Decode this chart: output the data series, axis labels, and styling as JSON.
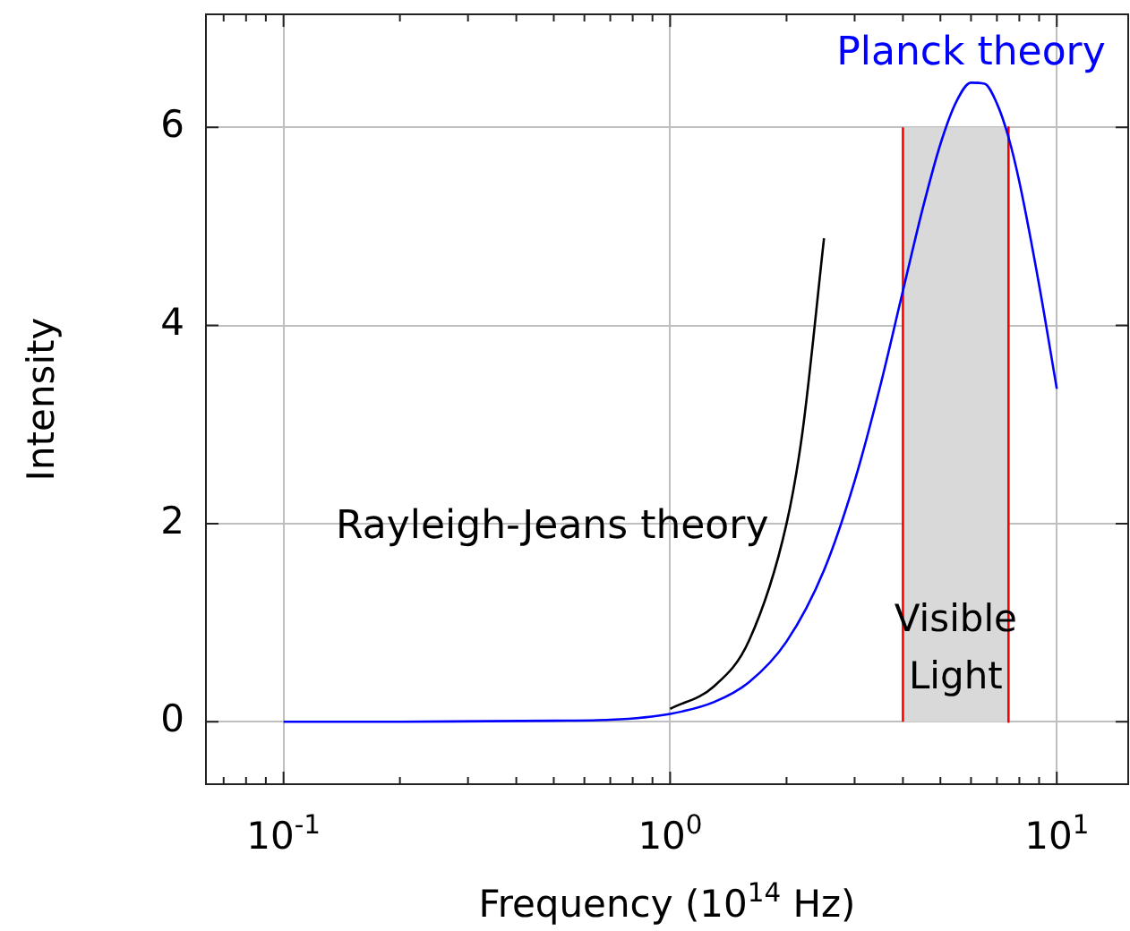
{
  "chart_data": {
    "type": "line",
    "xlabel": "Frequency (10$^{14}$ Hz)",
    "ylabel": "Intensity",
    "log": "x",
    "xlim": [
      0.063,
      15.3
    ],
    "ylim": [
      -0.63,
      7.14
    ],
    "xticks": [
      {
        "value": 0.07,
        "label": null
      },
      {
        "value": 0.08,
        "label": null
      },
      {
        "value": 0.09,
        "label": null
      },
      {
        "value": 0.1,
        "label": "10$^{-1}$"
      },
      {
        "value": 0.2,
        "label": null
      },
      {
        "value": 0.3,
        "label": null
      },
      {
        "value": 0.4,
        "label": null
      },
      {
        "value": 0.5,
        "label": null
      },
      {
        "value": 0.6,
        "label": null
      },
      {
        "value": 0.7,
        "label": null
      },
      {
        "value": 0.8,
        "label": null
      },
      {
        "value": 0.9,
        "label": null
      },
      {
        "value": 1,
        "label": "10$^{0}$"
      },
      {
        "value": 2,
        "label": null
      },
      {
        "value": 3,
        "label": null
      },
      {
        "value": 4,
        "label": null
      },
      {
        "value": 5,
        "label": null
      },
      {
        "value": 6,
        "label": null
      },
      {
        "value": 7,
        "label": null
      },
      {
        "value": 8,
        "label": null
      },
      {
        "value": 9,
        "label": null
      },
      {
        "value": 10,
        "label": "10$^{1}$"
      }
    ],
    "yticks": [
      0,
      2,
      4,
      6
    ],
    "grid": true,
    "legend": false,
    "marker": "none",
    "line_style": "solid",
    "series": [
      {
        "type": "area",
        "color": "#d9d9d9",
        "x": [
          4,
          4,
          7.5,
          7.5
        ],
        "values": [
          0,
          6,
          6,
          0
        ]
      },
      {
        "name": "Rayleigh-Jeans theory",
        "color": "#000000",
        "x": [
          1,
          1.3,
          1.6,
          2,
          2.2,
          2.5
        ],
        "values": [
          0.13,
          0.36,
          0.82,
          2.0,
          2.93,
          4.88
        ]
      },
      {
        "name": "Planck theory",
        "color": "#0000ff",
        "x": [
          0.1,
          0.2,
          0.5,
          0.7,
          1,
          1.3,
          1.6,
          2,
          2.5,
          3,
          3.5,
          4,
          4.5,
          5,
          5.5,
          6,
          6.5,
          7,
          7.5,
          8,
          9,
          10
        ],
        "values": [
          0,
          0,
          0.01,
          0.02,
          0.08,
          0.2,
          0.4,
          0.81,
          1.53,
          2.43,
          3.4,
          4.35,
          5.18,
          5.83,
          6.26,
          6.45,
          6.44,
          6.24,
          5.9,
          5.45,
          4.41,
          3.36
        ]
      }
    ],
    "annotations": [
      "Visible\nLight"
    ]
  }
}
